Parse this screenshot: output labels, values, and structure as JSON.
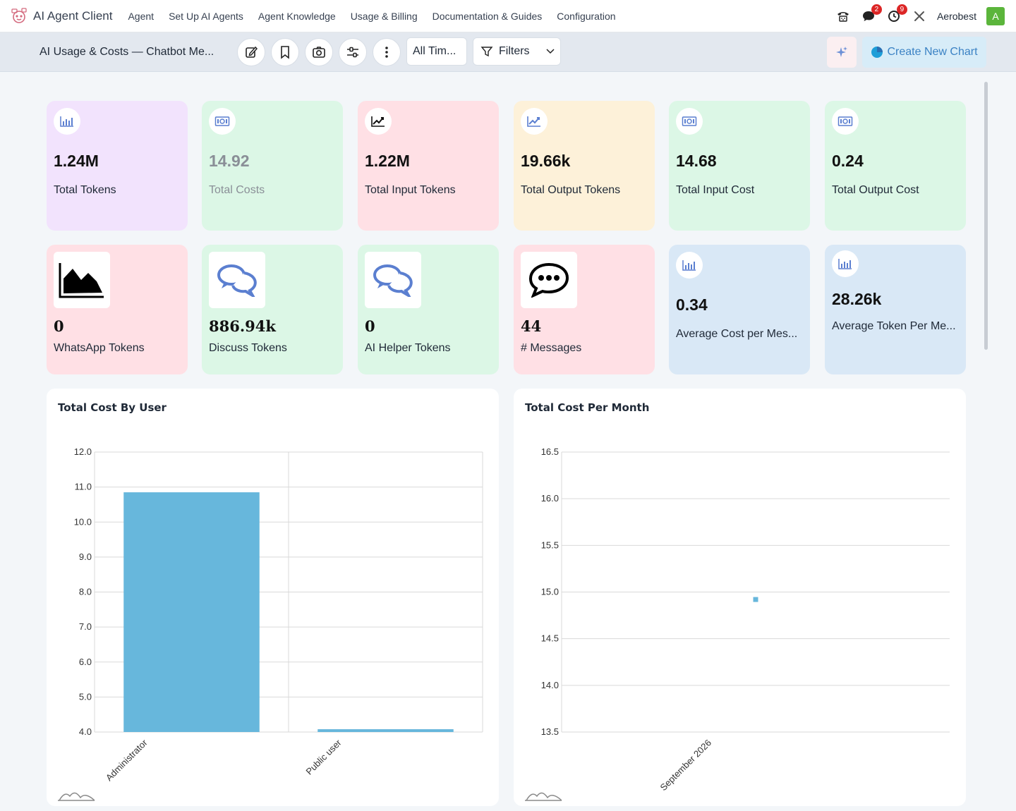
{
  "nav": {
    "brand": "AI Agent Client",
    "menu": [
      "Agent",
      "Set Up AI Agents",
      "Agent Knowledge",
      "Usage & Billing",
      "Documentation & Guides",
      "Configuration"
    ],
    "chat_badge": "2",
    "activity_badge": "9",
    "username": "Aerobest",
    "avatar_letter": "A"
  },
  "toolbar": {
    "title": "AI Usage & Costs — Chatbot Me...",
    "time_filter": "All Tim...",
    "filters_label": "Filters",
    "create_chart_label": "Create New Chart"
  },
  "cards": [
    {
      "value": "1.24M",
      "label": "Total Tokens",
      "icon": "bar-chart-icon"
    },
    {
      "value": "14.92",
      "label": "Total Costs",
      "icon": "money-icon"
    },
    {
      "value": "1.22M",
      "label": "Total Input Tokens",
      "icon": "line-chart-icon"
    },
    {
      "value": "19.66k",
      "label": "Total Output Tokens",
      "icon": "line-chart-icon"
    },
    {
      "value": "14.68",
      "label": "Total Input Cost",
      "icon": "money-icon"
    },
    {
      "value": "0.24",
      "label": "Total Output Cost",
      "icon": "money-icon"
    },
    {
      "value": "0",
      "label": "WhatsApp Tokens",
      "icon": "area-chart-icon"
    },
    {
      "value": "886.94k",
      "label": "Discuss Tokens",
      "icon": "chat-bubbles-icon"
    },
    {
      "value": "0",
      "label": "AI Helper Tokens",
      "icon": "chat-bubbles-icon"
    },
    {
      "value": "44",
      "label": "# Messages",
      "icon": "speech-bubble-icon"
    },
    {
      "value": "0.34",
      "label": "Average Cost per Mes...",
      "icon": "bar-chart-icon"
    },
    {
      "value": "28.26k",
      "label": "Average Token Per Me...",
      "icon": "bar-chart-icon"
    }
  ],
  "chart_data": [
    {
      "type": "bar",
      "title": "Total Cost By User",
      "categories": [
        "Administrator",
        "Public user"
      ],
      "values": [
        10.85,
        4.08
      ],
      "ylim": [
        4.0,
        12.0
      ],
      "yticks": [
        "4.0",
        "5.0",
        "6.0",
        "7.0",
        "8.0",
        "9.0",
        "10.0",
        "11.0",
        "12.0"
      ],
      "grid": true,
      "color": "#67b7dc"
    },
    {
      "type": "scatter",
      "title": "Total Cost Per Month",
      "categories": [
        "September 2026"
      ],
      "values": [
        14.92
      ],
      "ylim": [
        13.5,
        16.5
      ],
      "yticks": [
        "13.5",
        "14.0",
        "14.5",
        "15.0",
        "15.5",
        "16.0",
        "16.5"
      ],
      "grid": true,
      "color": "#67b7dc"
    }
  ]
}
